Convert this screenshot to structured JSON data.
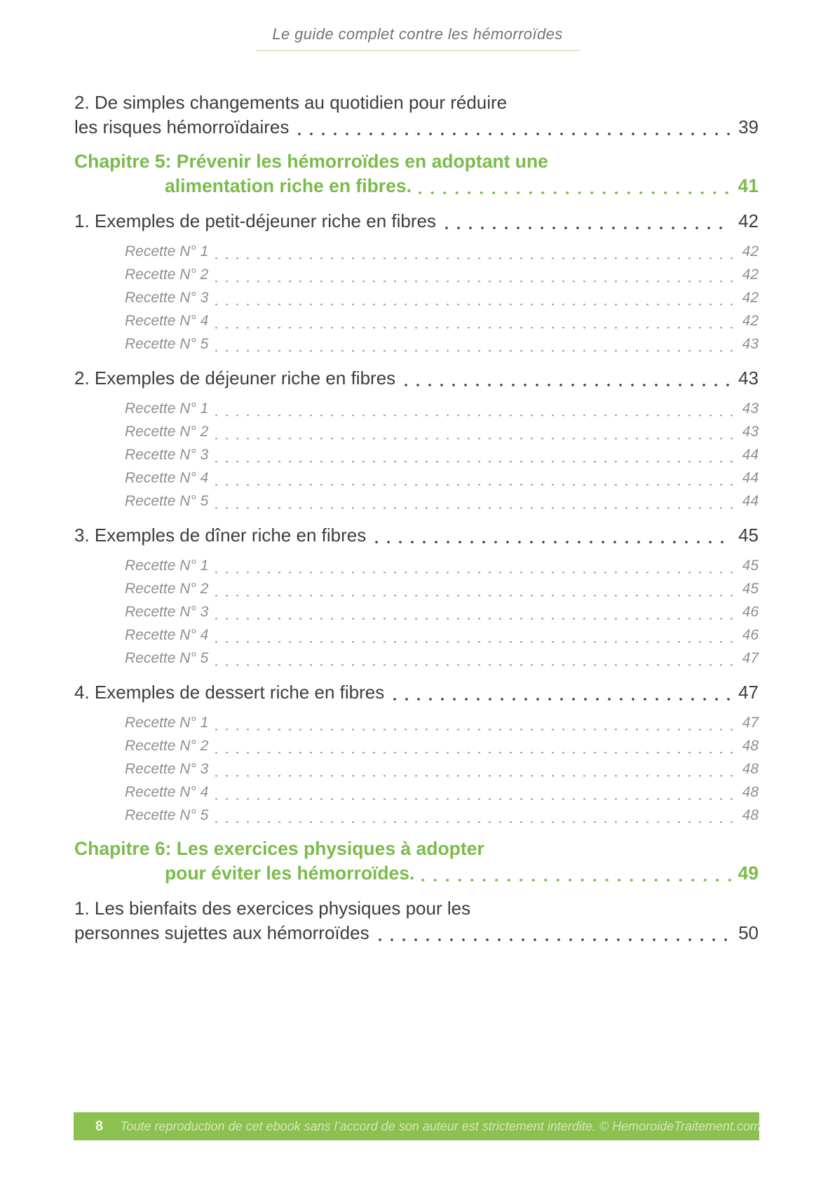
{
  "header": {
    "book_title": "Le guide complet contre les hémorroïdes"
  },
  "toc": {
    "entries": [
      {
        "kind": "section",
        "line1": "2. De simples changements au quotidien pour réduire",
        "line2": "les risques hémorroïdaires",
        "page": "39"
      },
      {
        "kind": "chapter",
        "line1": "Chapitre 5: Prévenir les hémorroïdes en adoptant une",
        "line2": "alimentation riche en fibres.",
        "page": "41"
      },
      {
        "kind": "section",
        "line1": "1. Exemples de petit-déjeuner riche en fibres",
        "page": "42"
      },
      {
        "kind": "recipe",
        "label": "Recette N° 1",
        "page": "42"
      },
      {
        "kind": "recipe",
        "label": "Recette N° 2",
        "page": "42"
      },
      {
        "kind": "recipe",
        "label": "Recette N° 3",
        "page": "42"
      },
      {
        "kind": "recipe",
        "label": "Recette N° 4",
        "page": "42"
      },
      {
        "kind": "recipe",
        "label": "Recette N° 5",
        "page": "43"
      },
      {
        "kind": "section",
        "line1": "2. Exemples de déjeuner riche en fibres",
        "page": "43"
      },
      {
        "kind": "recipe",
        "label": "Recette N° 1",
        "page": "43"
      },
      {
        "kind": "recipe",
        "label": "Recette N° 2",
        "page": "43"
      },
      {
        "kind": "recipe",
        "label": "Recette N° 3",
        "page": "44"
      },
      {
        "kind": "recipe",
        "label": "Recette N° 4",
        "page": "44"
      },
      {
        "kind": "recipe",
        "label": "Recette N° 5",
        "page": "44"
      },
      {
        "kind": "section",
        "line1": "3. Exemples de dîner riche en fibres",
        "page": "45"
      },
      {
        "kind": "recipe",
        "label": "Recette N° 1",
        "page": "45"
      },
      {
        "kind": "recipe",
        "label": "Recette N° 2",
        "page": "45"
      },
      {
        "kind": "recipe",
        "label": "Recette N° 3",
        "page": "46"
      },
      {
        "kind": "recipe",
        "label": "Recette N° 4",
        "page": "46"
      },
      {
        "kind": "recipe",
        "label": "Recette N° 5",
        "page": "47"
      },
      {
        "kind": "section",
        "line1": "4. Exemples de dessert riche en fibres",
        "page": "47"
      },
      {
        "kind": "recipe",
        "label": "Recette N° 1",
        "page": "47"
      },
      {
        "kind": "recipe",
        "label": "Recette N° 2",
        "page": "48"
      },
      {
        "kind": "recipe",
        "label": "Recette N° 3",
        "page": "48"
      },
      {
        "kind": "recipe",
        "label": "Recette N° 4",
        "page": "48"
      },
      {
        "kind": "recipe",
        "label": "Recette N° 5",
        "page": "48"
      },
      {
        "kind": "chapter",
        "line1": "Chapitre 6: Les exercices physiques à adopter",
        "line2": "pour éviter les hémorroïdes.",
        "page": "49"
      },
      {
        "kind": "section",
        "line1": "1. Les bienfaits des exercices physiques pour les",
        "line2": "personnes sujettes aux hémorroïdes",
        "page": "50"
      }
    ]
  },
  "footer": {
    "page_number": "8",
    "copyright": "Toute reproduction de cet ebook sans l’accord de son auteur est strictement interdite. © HemoroideTraitement.com"
  },
  "colors": {
    "accent_green": "#7bbb4c",
    "footer_green": "#8cc152",
    "footer_text": "#d3e9b4",
    "text_dark": "#3d3d3d",
    "text_gray": "#8f8f8f",
    "rule": "#e6e4cf"
  }
}
